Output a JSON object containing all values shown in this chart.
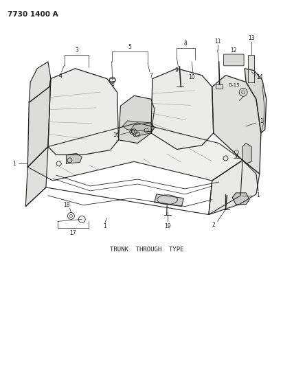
{
  "title": "7730 1400 A",
  "subtitle": "TRUNK  THROUGH  TYPE",
  "bg_color": "#ffffff",
  "line_color": "#222222",
  "text_color": "#222222",
  "title_fs": 7.5,
  "subtitle_fs": 6.5,
  "label_fs": 6.0
}
